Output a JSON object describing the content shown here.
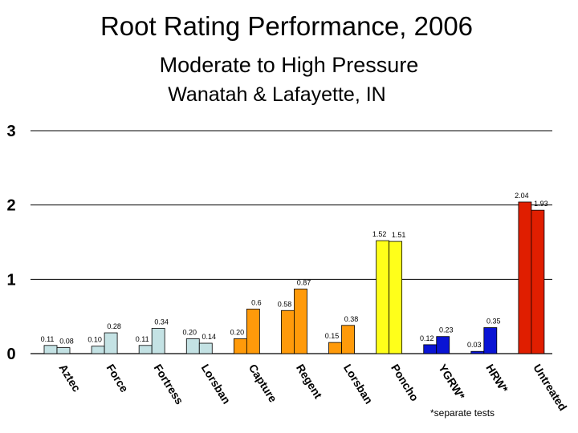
{
  "chart_data": {
    "type": "bar",
    "title": "Root Rating Performance, 2006",
    "subtitle": "Moderate to High Pressure",
    "subtitle2": "Wanatah & Lafayette, IN",
    "xlabel": "",
    "ylabel": "",
    "ylim": [
      0,
      3
    ],
    "yticks": [
      "0",
      "1",
      "2",
      "3"
    ],
    "grid": true,
    "categories": [
      "Aztec",
      "Force",
      "Fortress",
      "Lorsban",
      "Capture",
      "Regent",
      "Lorsban",
      "Poncho",
      "YGRW*",
      "HRW*",
      "Untreated"
    ],
    "colors": [
      "#c4e2e4",
      "#c4e2e4",
      "#c4e2e4",
      "#c4e2e4",
      "#ff9a0a",
      "#ff9a0a",
      "#ff9a0a",
      "#ffff1a",
      "#0a14d4",
      "#0a14d4",
      "#e01e00"
    ],
    "series": [
      {
        "values": [
          0.11,
          0.1,
          0.11,
          0.2,
          0.2,
          0.58,
          0.15,
          1.52,
          0.12,
          0.03,
          2.04
        ],
        "labels": [
          "0.11",
          "0.10",
          "0.11",
          "0.20",
          "0.20",
          "0.58",
          "0.15",
          "1.52",
          "0.12",
          "0.03",
          "2.04"
        ]
      },
      {
        "values": [
          0.08,
          0.28,
          0.34,
          0.14,
          0.6,
          0.87,
          0.38,
          1.51,
          0.23,
          0.35,
          1.93
        ],
        "labels": [
          "0.08",
          "0.28",
          "0.34",
          "0.14",
          "0.6",
          "0.87",
          "0.38",
          "1.51",
          "0.23",
          "0.35",
          "1.93"
        ]
      }
    ],
    "note": "*separate tests"
  }
}
